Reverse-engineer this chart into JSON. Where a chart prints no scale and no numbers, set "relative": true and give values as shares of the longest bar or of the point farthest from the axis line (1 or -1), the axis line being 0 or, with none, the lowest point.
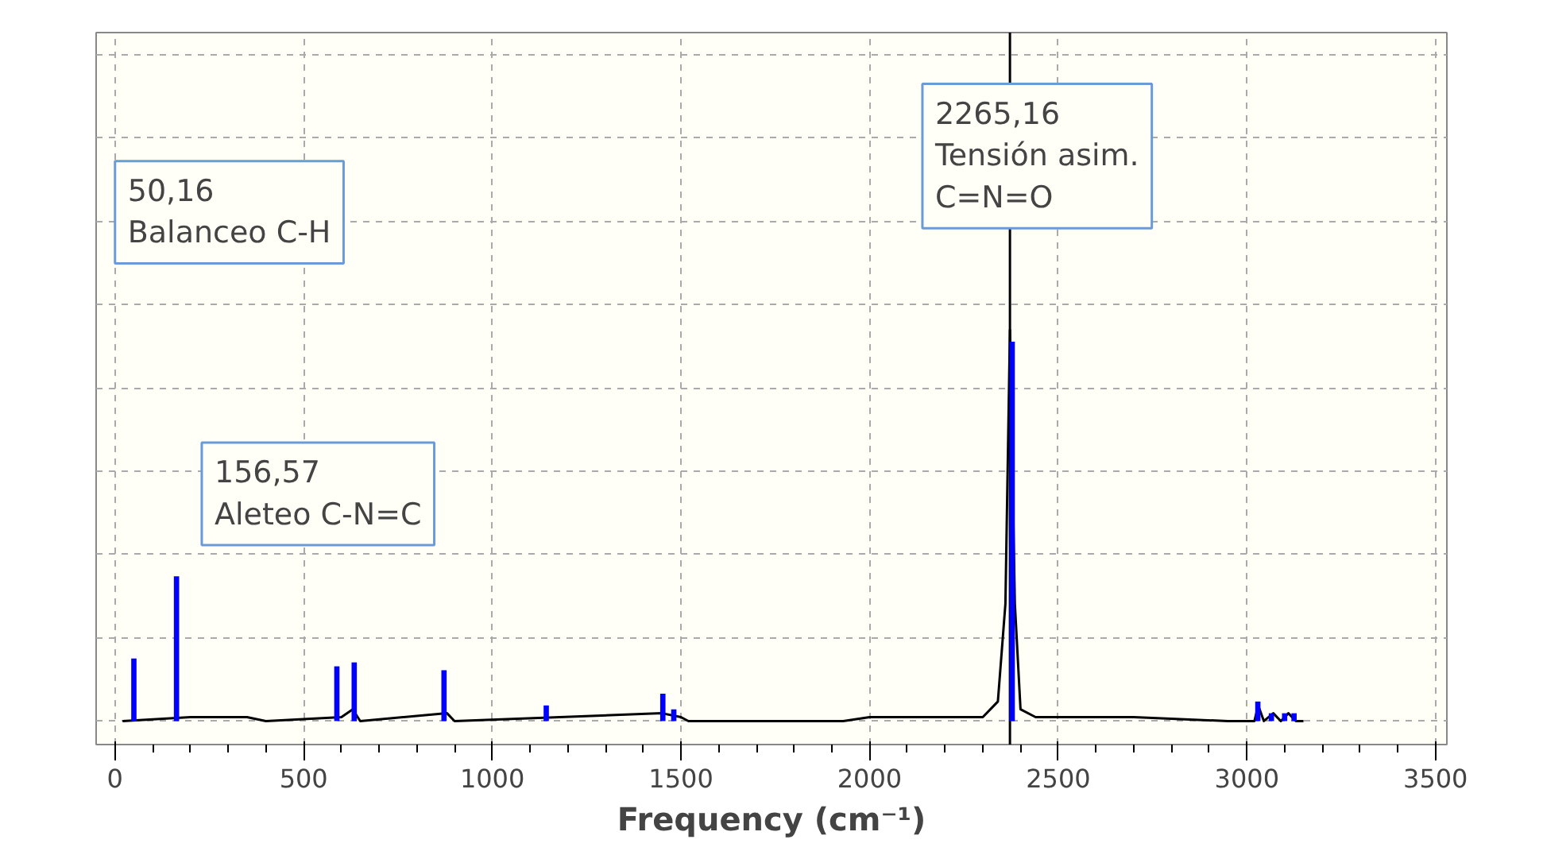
{
  "chart_data": {
    "type": "bar",
    "relative": true,
    "xlabel": "Frequency (cm⁻¹)",
    "xlim": [
      -50,
      3530
    ],
    "xticks": [
      0,
      500,
      1000,
      1500,
      2000,
      2500,
      3000,
      3500
    ],
    "grid": true,
    "tick_labels": "x",
    "series": [
      {
        "color": "#0000ff",
        "x": [
          50,
          163,
          588,
          634,
          872,
          1143,
          1452,
          1481,
          2378,
          3029,
          3065,
          3100,
          3125
        ],
        "values": [
          0.16,
          0.37,
          0.14,
          0.15,
          0.13,
          0.04,
          0.07,
          0.03,
          0.97,
          0.05,
          0.02,
          0.02,
          0.02
        ]
      },
      {
        "type": "line",
        "color": "#000000",
        "x": [
          20,
          200,
          350,
          400,
          600,
          630,
          650,
          880,
          900,
          1450,
          1500,
          1520,
          1930,
          2000,
          2300,
          2340,
          2360,
          2372,
          2385,
          2400,
          2440,
          2700,
          2950,
          3020,
          3030,
          3045,
          3070,
          3090,
          3110,
          3130,
          3150
        ],
        "values": [
          0,
          0.01,
          0.01,
          0,
          0.01,
          0.03,
          0,
          0.02,
          0,
          0.02,
          0.01,
          0,
          0,
          0.01,
          0.01,
          0.05,
          0.3,
          1,
          0.3,
          0.03,
          0.01,
          0.01,
          0,
          0,
          0.04,
          0,
          0.02,
          0,
          0.02,
          0,
          0
        ]
      }
    ],
    "ref_lines": [
      {
        "axis": "x",
        "value": 2372,
        "color": "#000000"
      }
    ],
    "annotations": [
      "50,16\nBalanceo C-H",
      "156,57\nAleteo C-N=C",
      "2265,16\nTensión asim.\nC=N=O"
    ]
  }
}
